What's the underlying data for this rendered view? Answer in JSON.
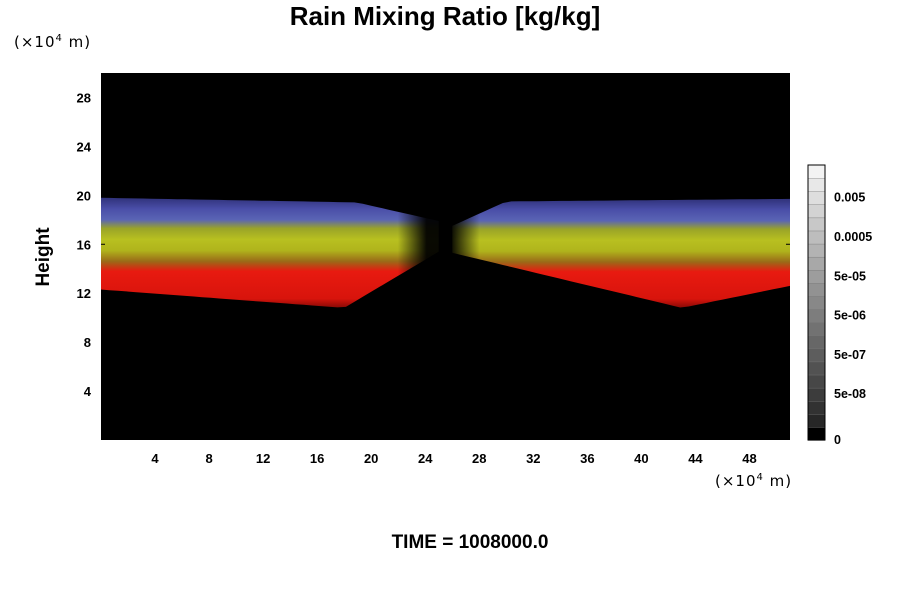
{
  "chart_data": {
    "type": "heatmap",
    "title": "Rain Mixing Ratio [kg/kg]",
    "ylabel": "Height",
    "xlabel": "",
    "x_unit": "(×10⁴ m)",
    "y_unit": "(×10⁴ m)",
    "x_ticks": [
      4,
      8,
      12,
      16,
      20,
      24,
      28,
      32,
      36,
      40,
      44,
      48
    ],
    "y_ticks": [
      4,
      8,
      12,
      16,
      20,
      24,
      28
    ],
    "xlim": [
      0,
      51
    ],
    "ylim": [
      0,
      30
    ],
    "background_color": "#000000",
    "colorbar": {
      "labels": [
        "0",
        "5e-08",
        "5e-07",
        "5e-06",
        "5e-05",
        "0.0005",
        "0.005"
      ],
      "levels": 21,
      "scale": "log"
    },
    "bands": [
      {
        "name": "red",
        "color": "#e0140c",
        "approx_y_range": [
          12,
          15
        ]
      },
      {
        "name": "yellow-green",
        "color": "#b4bc1c",
        "approx_y_range": [
          15,
          17.5
        ]
      },
      {
        "name": "blue",
        "color": "#4a50b8",
        "approx_y_range": [
          17.5,
          20
        ]
      }
    ],
    "gap_x_range": [
      23,
      27
    ]
  },
  "footer": {
    "time_label": "TIME = 1008000.0"
  }
}
